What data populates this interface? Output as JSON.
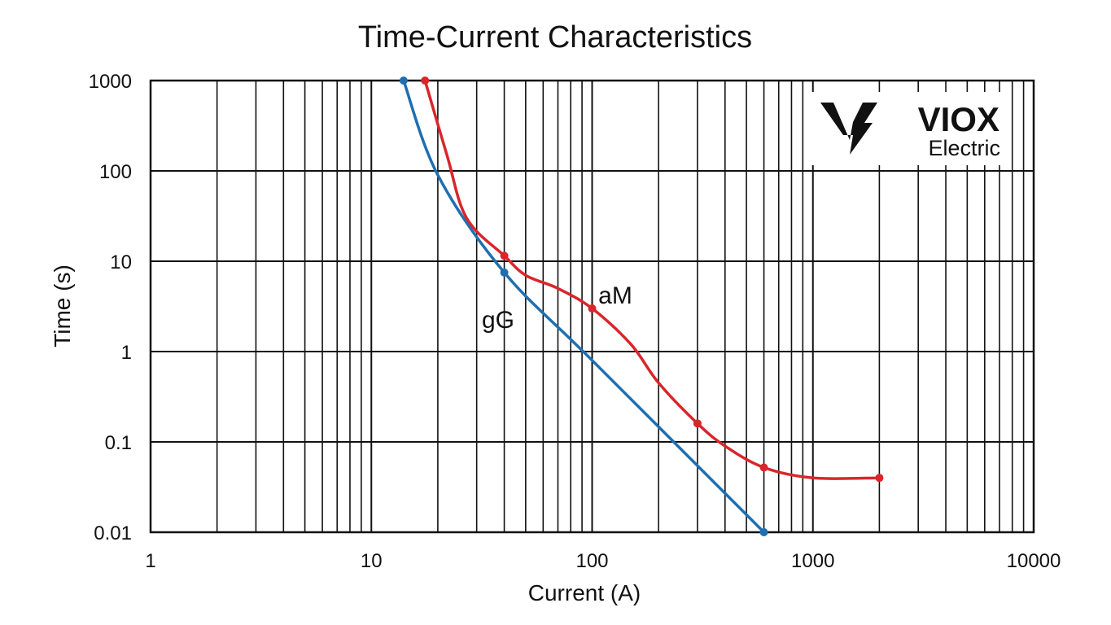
{
  "chart_data": {
    "type": "line",
    "title": "Time-Current Characteristics",
    "xlabel": "Current (A)",
    "ylabel": "Time (s)",
    "x_scale": "log",
    "y_scale": "log",
    "xlim": [
      1,
      10000
    ],
    "ylim": [
      0.01,
      1000
    ],
    "x_ticks": [
      1,
      10,
      100,
      1000,
      10000
    ],
    "x_tick_labels": [
      "1",
      "10",
      "100",
      "1000",
      "10000"
    ],
    "y_ticks": [
      0.01,
      0.1,
      1,
      10,
      100,
      1000
    ],
    "y_tick_labels": [
      "0.01",
      "0.1",
      "1",
      "10",
      "100",
      "1000"
    ],
    "grid": true,
    "series": [
      {
        "name": "gG",
        "label": "gG",
        "color": "#1f6fb0",
        "x": [
          14,
          20,
          40,
          100,
          600
        ],
        "y": [
          1000,
          90,
          7.5,
          0.8,
          0.01
        ],
        "markers_x": [
          14,
          40,
          600
        ],
        "markers_y": [
          1000,
          7.5,
          0.01
        ]
      },
      {
        "name": "aM",
        "label": "aM",
        "color": "#d9262b",
        "x": [
          17.5,
          22,
          27,
          40,
          50,
          70,
          100,
          150,
          200,
          300,
          400,
          600,
          1000,
          2000
        ],
        "y": [
          1000,
          150,
          30,
          11.5,
          7,
          5,
          3,
          1.2,
          0.45,
          0.16,
          0.09,
          0.052,
          0.04,
          0.04
        ],
        "markers_x": [
          17.5,
          40,
          100,
          300,
          600,
          2000
        ],
        "markers_y": [
          1000,
          11.5,
          3,
          0.16,
          0.052,
          0.04
        ]
      }
    ]
  },
  "logo": {
    "name": "VIOX",
    "subtitle": "Electric"
  }
}
